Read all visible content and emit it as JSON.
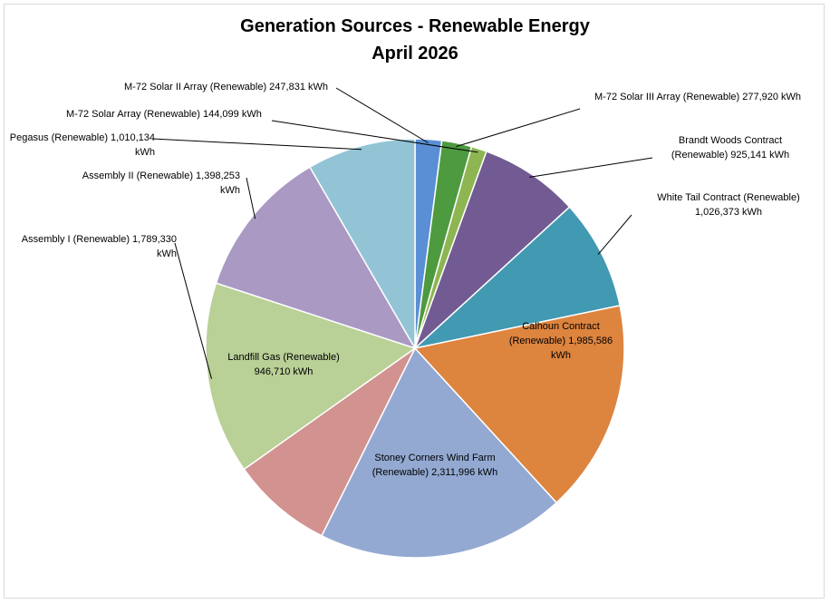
{
  "chart_data": {
    "type": "pie",
    "title": "Generation Sources - Renewable Energy",
    "subtitle": "April 2026",
    "unit": "kWh",
    "start_angle_deg": 0,
    "direction": "clockwise",
    "slices": [
      {
        "id": "m72-solar-ii",
        "name": "M-72 Solar II Array (Renewable)",
        "value": 247831,
        "value_label": "247,831",
        "color": "#5a8fd6"
      },
      {
        "id": "m72-solar-iii",
        "name": "M-72 Solar III Array (Renewable)",
        "value": 277920,
        "value_label": "277,920",
        "color": "#4e9a3f"
      },
      {
        "id": "m72-solar",
        "name": "M-72 Solar Array (Renewable)",
        "value": 144099,
        "value_label": "144,099",
        "color": "#8db653"
      },
      {
        "id": "brandt-woods",
        "name": "Brandt Woods Contract (Renewable)",
        "value": 925141,
        "value_label": "925,141",
        "color": "#725a92"
      },
      {
        "id": "white-tail",
        "name": "White Tail Contract (Renewable)",
        "value": 1026373,
        "value_label": "1,026,373",
        "color": "#4299b2"
      },
      {
        "id": "calhoun",
        "name": "Calhoun Contract (Renewable)",
        "value": 1985586,
        "value_label": "1,985,586",
        "color": "#dd843f"
      },
      {
        "id": "stoney-corners",
        "name": "Stoney Corners Wind Farm (Renewable)",
        "value": 2311996,
        "value_label": "2,311,996",
        "color": "#93a9d2"
      },
      {
        "id": "landfill-gas",
        "name": "Landfill Gas (Renewable)",
        "value": 946710,
        "value_label": "946,710",
        "color": "#d29290"
      },
      {
        "id": "assembly-i",
        "name": "Assembly I (Renewable)",
        "value": 1789330,
        "value_label": "1,789,330",
        "color": "#b9d097"
      },
      {
        "id": "assembly-ii",
        "name": "Assembly II (Renewable)",
        "value": 1398253,
        "value_label": "1,398,253",
        "color": "#a999c3"
      },
      {
        "id": "pegasus",
        "name": "Pegasus (Renewable)",
        "value": 1010134,
        "value_label": "1,010,134",
        "color": "#92c4d6"
      }
    ],
    "labels": {
      "m72-solar-ii": {
        "lines": [
          "M-72 Solar II Array (Renewable)  247,831   kWh"
        ]
      },
      "m72-solar-iii": {
        "lines": [
          "M-72 Solar III Array (Renewable)  277,920   kWh"
        ]
      },
      "m72-solar": {
        "lines": [
          "M-72 Solar Array (Renewable)  144,099   kWh"
        ]
      },
      "brandt-woods": {
        "lines": [
          "Brandt Woods Contract",
          "(Renewable)  925,141   kWh"
        ]
      },
      "white-tail": {
        "lines": [
          "White Tail Contract (Renewable)",
          "1,026,373   kWh"
        ]
      },
      "calhoun": {
        "lines": [
          "Calhoun Contract",
          "(Renewable)  1,985,586",
          "kWh"
        ]
      },
      "stoney-corners": {
        "lines": [
          "Stoney Corners Wind Farm",
          "(Renewable)  2,311,996   kWh"
        ]
      },
      "landfill-gas": {
        "lines": [
          "Landfill Gas (Renewable)",
          "946,710   kWh"
        ]
      },
      "assembly-i": {
        "lines": [
          "Assembly I (Renewable)  1,789,330",
          "kWh"
        ]
      },
      "assembly-ii": {
        "lines": [
          "Assembly II (Renewable)  1,398,253",
          "kWh"
        ]
      },
      "pegasus": {
        "lines": [
          "Pegasus (Renewable)  1,010,134",
          "kWh"
        ]
      }
    }
  }
}
